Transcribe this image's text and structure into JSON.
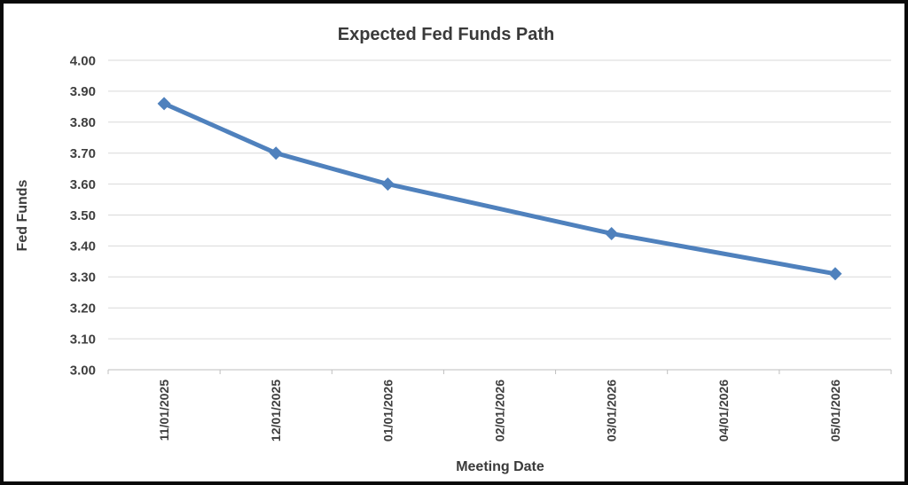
{
  "frame": {
    "background": "#ffffff",
    "border_color": "#0a0a0a"
  },
  "chart_data": {
    "type": "line",
    "title": "Expected Fed Funds Path",
    "xlabel": "Meeting Date",
    "ylabel": "Fed Funds",
    "categories": [
      "11/01/2025",
      "12/01/2025",
      "01/01/2026",
      "02/01/2026",
      "03/01/2026",
      "04/01/2026",
      "05/01/2026"
    ],
    "series": [
      {
        "name": "Expected Fed Funds",
        "values": [
          3.86,
          3.7,
          3.6,
          null,
          3.44,
          null,
          3.31
        ]
      }
    ],
    "ylim": [
      3.0,
      4.0
    ],
    "ytick_labels": [
      "4.00",
      "3.90",
      "3.80",
      "3.70",
      "3.60",
      "3.50",
      "3.40",
      "3.30",
      "3.20",
      "3.10",
      "3.00"
    ],
    "grid": "horizontal-only",
    "legend": "none",
    "marker": "diamond",
    "colors": {
      "line": "#4f81bd",
      "marker": "#4f81bd",
      "gridline": "#d9d9d9",
      "axis": "#bfbfbf",
      "text": "#3f3f3f"
    }
  }
}
